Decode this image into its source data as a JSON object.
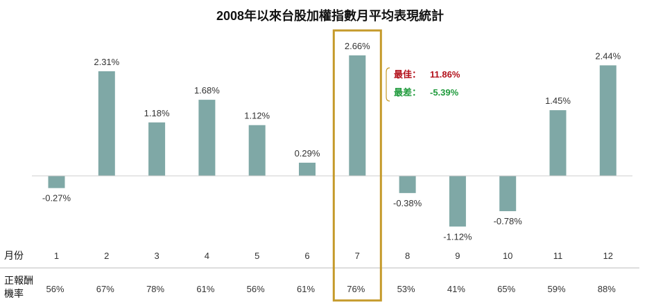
{
  "chart_data": {
    "type": "bar",
    "title": "2008年以來台股加權指數月平均表現統計",
    "categories": [
      "1",
      "2",
      "3",
      "4",
      "5",
      "6",
      "7",
      "8",
      "9",
      "10",
      "11",
      "12"
    ],
    "values": [
      -0.27,
      2.31,
      1.18,
      1.68,
      1.12,
      0.29,
      2.66,
      -0.38,
      -1.12,
      -0.78,
      1.45,
      2.44
    ],
    "value_labels": [
      "-0.27%",
      "2.31%",
      "1.18%",
      "1.68%",
      "1.12%",
      "0.29%",
      "2.66%",
      "-0.38%",
      "-1.12%",
      "-0.78%",
      "1.45%",
      "2.44%"
    ],
    "win_rate": [
      56,
      67,
      78,
      61,
      56,
      61,
      76,
      53,
      41,
      65,
      59,
      88
    ],
    "win_rate_labels": [
      "56%",
      "67%",
      "78%",
      "61%",
      "56%",
      "61%",
      "76%",
      "53%",
      "41%",
      "65%",
      "59%",
      "88%"
    ],
    "row_label_month": "月份",
    "row_label_winrate_line1": "正報酬",
    "row_label_winrate_line2": "機率",
    "highlight_month": "7",
    "annotation": {
      "best_label": "最佳：",
      "best_value": "11.86%",
      "worst_label": "最差：",
      "worst_value": "-5.39%"
    },
    "ylim": [
      -1.4,
      3.0
    ],
    "grid": false,
    "colors": {
      "bar": "#7fa8a6",
      "highlight_box": "#c59a2a",
      "best": "#b3111b",
      "worst": "#1e9a3b",
      "axis": "#cccccc"
    }
  }
}
